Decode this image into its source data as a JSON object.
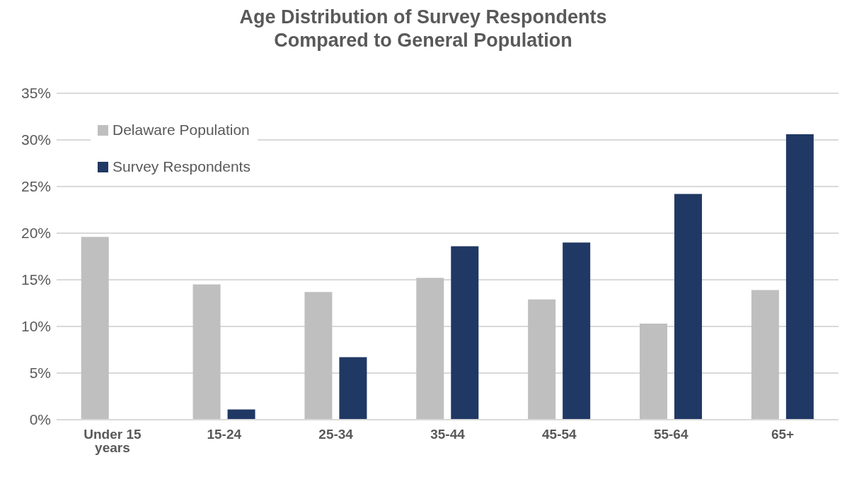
{
  "chart_data": {
    "type": "bar",
    "title": "Age Distribution of Survey Respondents Compared to General Population",
    "categories": [
      "Under 15 years",
      "15-24",
      "25-34",
      "35-44",
      "45-54",
      "55-64",
      "65+"
    ],
    "series": [
      {
        "name": "Delaware Population",
        "color": "#bfbfbf",
        "values": [
          19.6,
          14.5,
          13.7,
          15.2,
          12.9,
          10.3,
          13.9
        ]
      },
      {
        "name": "Survey Respondents",
        "color": "#203864",
        "values": [
          null,
          1.1,
          6.7,
          18.6,
          19.0,
          24.2,
          30.6
        ]
      }
    ],
    "ylim": [
      0,
      35
    ],
    "yticks": [
      {
        "value": 0,
        "label": "0%"
      },
      {
        "value": 5,
        "label": "5%"
      },
      {
        "value": 10,
        "label": "10%"
      },
      {
        "value": 15,
        "label": "15%"
      },
      {
        "value": 20,
        "label": "20%"
      },
      {
        "value": 25,
        "label": "25%"
      },
      {
        "value": 30,
        "label": "30%"
      },
      {
        "value": 35,
        "label": "35%"
      }
    ],
    "grid": "y",
    "legend": "top left"
  }
}
